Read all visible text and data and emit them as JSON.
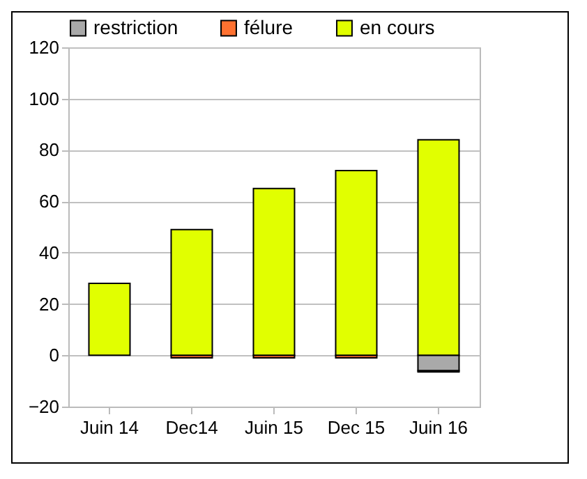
{
  "chart_data": {
    "type": "bar",
    "stacked": true,
    "categories": [
      "Juin 14",
      "Dec14",
      "Juin 15",
      "Dec 15",
      "Juin 16"
    ],
    "series": [
      {
        "name": "restriction",
        "color": "#a9a9a9",
        "values": [
          0,
          0,
          0,
          0,
          -6
        ]
      },
      {
        "name": "félure",
        "color": "#ff7130",
        "values": [
          0,
          -1,
          -1,
          -1,
          -0.5
        ]
      },
      {
        "name": "en cours",
        "color": "#e1ff00",
        "values": [
          28,
          49,
          65,
          72,
          84
        ]
      }
    ],
    "ylim": [
      -20,
      120
    ],
    "yticks": [
      -20,
      0,
      20,
      40,
      60,
      80,
      100,
      120
    ],
    "grid": "y",
    "legend": "top"
  }
}
